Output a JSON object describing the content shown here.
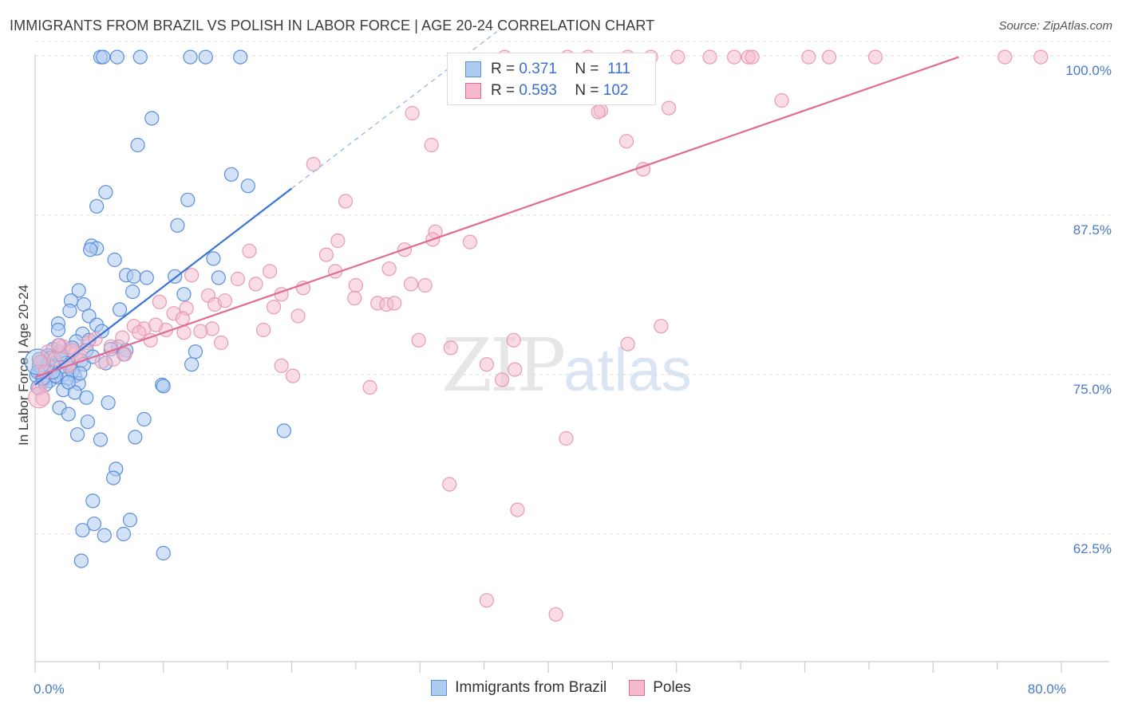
{
  "title": "IMMIGRANTS FROM BRAZIL VS POLISH IN LABOR FORCE | AGE 20-24 CORRELATION CHART",
  "source": "Source: ZipAtlas.com",
  "watermark": {
    "a": "ZIP",
    "b": "atlas"
  },
  "colors": {
    "blue": "#5b8fd8",
    "blue_fill": "#aecbf0",
    "pink": "#e06b93",
    "pink_fill": "#f5b9cc",
    "tick": "#4a78c8"
  },
  "legend": {
    "row1": {
      "r_label": "R =",
      "r_value": "0.371",
      "n_label": "N =",
      "n_value": "111"
    },
    "row2": {
      "r_label": "R =",
      "r_value": "0.593",
      "n_label": "N =",
      "n_value": "102"
    }
  },
  "bottom_legend": {
    "series1": "Immigrants from Brazil",
    "series2": "Poles"
  },
  "chart_data": {
    "type": "scatter",
    "title": "IMMIGRANTS FROM BRAZIL VS POLISH IN LABOR FORCE | AGE 20-24 CORRELATION CHART",
    "xlabel": "",
    "ylabel": "In Labor Force | Age 20-24",
    "xlim": [
      0,
      80
    ],
    "ylim": [
      52.5,
      100.5
    ],
    "x_tick_labels": [
      {
        "value": 0,
        "label": "0.0%"
      },
      {
        "value": 80,
        "label": "80.0%"
      }
    ],
    "y_tick_labels": [
      {
        "value": 100,
        "label": "100.0%"
      },
      {
        "value": 87.5,
        "label": "87.5%"
      },
      {
        "value": 75,
        "label": "75.0%"
      },
      {
        "value": 62.5,
        "label": "62.5%"
      }
    ],
    "series": [
      {
        "name": "Immigrants from Brazil",
        "r": 0.371,
        "n": 111,
        "trend": {
          "x0": 0,
          "y0": 74.2,
          "x1": 20,
          "y1": 89.6,
          "dash_x1": 36,
          "dash_y1": 101.9
        },
        "points": [
          [
            5.1,
            99.9
          ],
          [
            5.3,
            99.9
          ],
          [
            6.4,
            99.9
          ],
          [
            8.2,
            99.9
          ],
          [
            12.1,
            99.9
          ],
          [
            13.3,
            99.9
          ],
          [
            16.0,
            99.9
          ],
          [
            9.1,
            95.1
          ],
          [
            8.0,
            93.0
          ],
          [
            15.3,
            90.7
          ],
          [
            16.6,
            89.8
          ],
          [
            5.5,
            89.3
          ],
          [
            11.9,
            88.7
          ],
          [
            4.8,
            88.2
          ],
          [
            11.1,
            86.7
          ],
          [
            4.4,
            85.1
          ],
          [
            4.8,
            84.9
          ],
          [
            4.3,
            84.8
          ],
          [
            6.2,
            84.0
          ],
          [
            13.9,
            84.1
          ],
          [
            7.1,
            82.8
          ],
          [
            7.7,
            82.7
          ],
          [
            8.7,
            82.6
          ],
          [
            10.9,
            82.7
          ],
          [
            14.3,
            82.6
          ],
          [
            3.4,
            81.6
          ],
          [
            7.6,
            81.5
          ],
          [
            11.6,
            81.3
          ],
          [
            2.8,
            80.8
          ],
          [
            3.8,
            80.5
          ],
          [
            2.7,
            80.0
          ],
          [
            6.6,
            80.1
          ],
          [
            4.2,
            79.6
          ],
          [
            1.8,
            79.0
          ],
          [
            4.8,
            78.9
          ],
          [
            1.8,
            78.5
          ],
          [
            5.2,
            78.4
          ],
          [
            3.7,
            78.2
          ],
          [
            4.2,
            77.7
          ],
          [
            3.2,
            77.6
          ],
          [
            2.9,
            77.1
          ],
          [
            6.5,
            77.2
          ],
          [
            1.4,
            77.0
          ],
          [
            1.9,
            76.8
          ],
          [
            4.0,
            76.9
          ],
          [
            7.1,
            76.9
          ],
          [
            12.5,
            76.8
          ],
          [
            1.0,
            76.5
          ],
          [
            2.1,
            76.3
          ],
          [
            3.6,
            76.1
          ],
          [
            0.6,
            76.0
          ],
          [
            5.5,
            75.9
          ],
          [
            0.3,
            75.7
          ],
          [
            1.5,
            75.6
          ],
          [
            2.7,
            75.5
          ],
          [
            0.9,
            75.4
          ],
          [
            0.4,
            75.2
          ],
          [
            1.3,
            75.1
          ],
          [
            2.2,
            75.0
          ],
          [
            3.1,
            74.9
          ],
          [
            0.1,
            74.9
          ],
          [
            1.7,
            74.8
          ],
          [
            2.5,
            74.7
          ],
          [
            0.7,
            74.6
          ],
          [
            1.1,
            74.5
          ],
          [
            3.4,
            74.3
          ],
          [
            9.9,
            74.2
          ],
          [
            10.0,
            74.1
          ],
          [
            0.2,
            74.0
          ],
          [
            2.2,
            73.8
          ],
          [
            3.1,
            73.6
          ],
          [
            4.0,
            73.2
          ],
          [
            5.7,
            72.8
          ],
          [
            1.9,
            72.4
          ],
          [
            2.6,
            71.9
          ],
          [
            4.1,
            71.3
          ],
          [
            8.5,
            71.5
          ],
          [
            3.3,
            70.3
          ],
          [
            5.1,
            69.9
          ],
          [
            7.8,
            70.1
          ],
          [
            19.4,
            70.6
          ],
          [
            6.3,
            67.6
          ],
          [
            6.1,
            66.9
          ],
          [
            4.5,
            65.1
          ],
          [
            4.6,
            63.3
          ],
          [
            7.4,
            63.6
          ],
          [
            3.7,
            62.8
          ],
          [
            5.4,
            62.4
          ],
          [
            6.9,
            62.5
          ],
          [
            10.0,
            61.0
          ],
          [
            3.6,
            60.4
          ],
          [
            1.2,
            76.3
          ],
          [
            2.4,
            75.9
          ],
          [
            0.5,
            75.5
          ],
          [
            1.6,
            74.9
          ],
          [
            2.9,
            75.3
          ],
          [
            0.8,
            74.2
          ],
          [
            3.8,
            75.8
          ],
          [
            2.0,
            76.6
          ],
          [
            1.4,
            75.2
          ],
          [
            0.3,
            76.2
          ],
          [
            6.9,
            76.6
          ],
          [
            12.2,
            75.8
          ],
          [
            3.5,
            75.1
          ],
          [
            2.6,
            74.4
          ],
          [
            1.0,
            75.8
          ],
          [
            1.9,
            77.3
          ],
          [
            5.9,
            77.0
          ],
          [
            0.6,
            74.7
          ],
          [
            4.5,
            76.4
          ],
          [
            0.2,
            75.2
          ]
        ]
      },
      {
        "name": "Poles",
        "r": 0.593,
        "n": 102,
        "trend": {
          "x0": 0,
          "y0": 74.8,
          "x1": 72,
          "y1": 99.9
        },
        "points": [
          [
            36.6,
            99.9
          ],
          [
            41.5,
            99.9
          ],
          [
            43.1,
            99.9
          ],
          [
            46.2,
            99.9
          ],
          [
            48.0,
            99.9
          ],
          [
            50.1,
            99.9
          ],
          [
            52.6,
            99.9
          ],
          [
            54.5,
            99.9
          ],
          [
            55.6,
            99.9
          ],
          [
            55.9,
            99.9
          ],
          [
            60.3,
            99.9
          ],
          [
            61.9,
            99.9
          ],
          [
            65.5,
            99.9
          ],
          [
            75.6,
            99.9
          ],
          [
            78.4,
            99.9
          ],
          [
            58.2,
            96.5
          ],
          [
            49.4,
            95.9
          ],
          [
            44.1,
            95.7
          ],
          [
            43.9,
            95.6
          ],
          [
            29.4,
            95.5
          ],
          [
            30.9,
            93.0
          ],
          [
            46.1,
            93.3
          ],
          [
            47.4,
            91.1
          ],
          [
            21.7,
            91.5
          ],
          [
            24.2,
            88.6
          ],
          [
            31.2,
            86.2
          ],
          [
            31.0,
            85.6
          ],
          [
            23.6,
            85.5
          ],
          [
            33.9,
            85.4
          ],
          [
            16.7,
            84.7
          ],
          [
            22.7,
            84.4
          ],
          [
            28.8,
            84.8
          ],
          [
            18.3,
            83.1
          ],
          [
            27.6,
            83.3
          ],
          [
            23.4,
            83.1
          ],
          [
            12.2,
            82.8
          ],
          [
            15.8,
            82.5
          ],
          [
            17.2,
            82.1
          ],
          [
            25.0,
            82.0
          ],
          [
            29.3,
            82.1
          ],
          [
            30.4,
            82.0
          ],
          [
            20.9,
            81.8
          ],
          [
            13.5,
            81.2
          ],
          [
            19.2,
            81.3
          ],
          [
            24.9,
            81.0
          ],
          [
            26.7,
            80.6
          ],
          [
            27.4,
            80.5
          ],
          [
            28.0,
            80.6
          ],
          [
            9.7,
            80.7
          ],
          [
            14.0,
            80.5
          ],
          [
            11.8,
            80.2
          ],
          [
            14.8,
            80.8
          ],
          [
            18.6,
            80.3
          ],
          [
            20.5,
            79.6
          ],
          [
            10.8,
            79.8
          ],
          [
            11.5,
            79.4
          ],
          [
            7.7,
            78.8
          ],
          [
            8.5,
            78.6
          ],
          [
            10.2,
            78.5
          ],
          [
            13.8,
            78.6
          ],
          [
            17.8,
            78.5
          ],
          [
            48.8,
            78.8
          ],
          [
            8.1,
            78.3
          ],
          [
            11.6,
            78.3
          ],
          [
            6.8,
            77.9
          ],
          [
            9.0,
            77.7
          ],
          [
            14.5,
            77.5
          ],
          [
            29.9,
            77.7
          ],
          [
            32.4,
            77.1
          ],
          [
            37.3,
            77.7
          ],
          [
            46.2,
            77.4
          ],
          [
            2.2,
            77.2
          ],
          [
            4.1,
            77.5
          ],
          [
            5.9,
            77.2
          ],
          [
            1.0,
            76.8
          ],
          [
            3.2,
            76.7
          ],
          [
            7.0,
            76.6
          ],
          [
            1.5,
            76.2
          ],
          [
            5.2,
            76.0
          ],
          [
            0.4,
            76.0
          ],
          [
            2.6,
            75.7
          ],
          [
            19.2,
            75.7
          ],
          [
            35.2,
            75.8
          ],
          [
            37.4,
            75.4
          ],
          [
            20.1,
            74.9
          ],
          [
            36.4,
            74.6
          ],
          [
            26.1,
            74.0
          ],
          [
            0.3,
            73.9
          ],
          [
            0.6,
            73.1
          ],
          [
            41.4,
            70.0
          ],
          [
            32.3,
            66.4
          ],
          [
            37.6,
            64.4
          ],
          [
            35.2,
            57.3
          ],
          [
            40.6,
            56.2
          ],
          [
            3.5,
            76.5
          ],
          [
            1.8,
            77.3
          ],
          [
            6.1,
            76.2
          ],
          [
            4.7,
            77.8
          ],
          [
            2.9,
            76.9
          ],
          [
            0.8,
            75.2
          ],
          [
            9.4,
            78.9
          ],
          [
            12.9,
            78.4
          ]
        ]
      }
    ]
  }
}
